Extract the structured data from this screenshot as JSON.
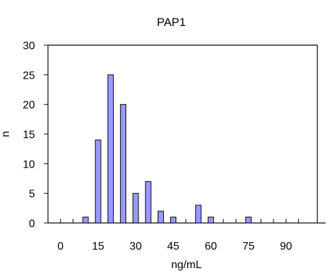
{
  "chart_data": {
    "type": "bar",
    "title": "PAP1",
    "xlabel": "ng/mL",
    "ylabel": "n",
    "x": [
      10,
      15,
      20,
      25,
      30,
      35,
      40,
      45,
      55,
      60,
      75
    ],
    "values": [
      1,
      14,
      25,
      20,
      5,
      7,
      2,
      1,
      3,
      1,
      1
    ],
    "xlim": [
      -5,
      102.5
    ],
    "ylim": [
      0,
      30
    ],
    "x_ticks": [
      0,
      15,
      30,
      45,
      60,
      75,
      90
    ],
    "y_ticks": [
      0,
      5,
      10,
      15,
      20,
      25,
      30
    ],
    "grid": false,
    "legend": "none",
    "colors": {
      "bar_fill": "#9999ff",
      "bar_stroke": "#000000",
      "axis": "#000000"
    }
  }
}
